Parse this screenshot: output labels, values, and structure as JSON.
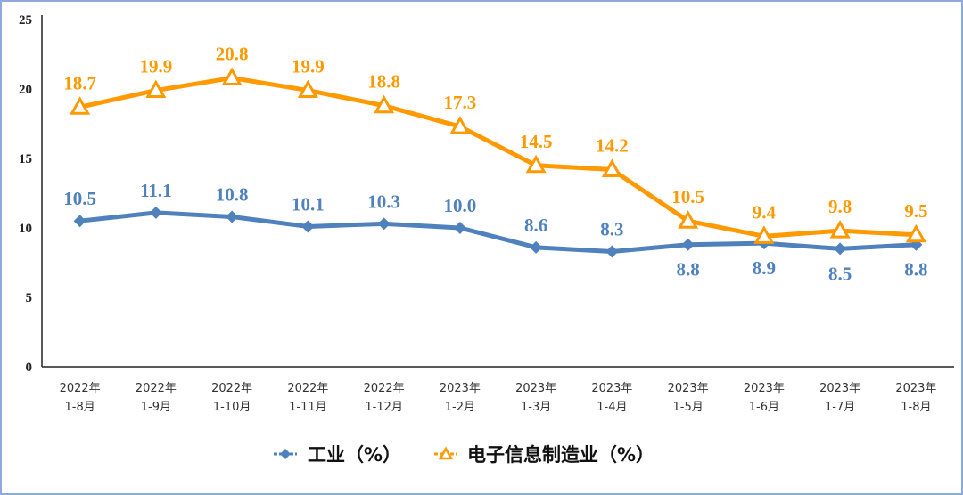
{
  "chart_data": {
    "type": "line",
    "categories": [
      [
        "2022年",
        "1-8月"
      ],
      [
        "2022年",
        "1-9月"
      ],
      [
        "2022年",
        "1-10月"
      ],
      [
        "2022年",
        "1-11月"
      ],
      [
        "2022年",
        "1-12月"
      ],
      [
        "2023年",
        "1-2月"
      ],
      [
        "2023年",
        "1-3月"
      ],
      [
        "2023年",
        "1-4月"
      ],
      [
        "2023年",
        "1-5月"
      ],
      [
        "2023年",
        "1-6月"
      ],
      [
        "2023年",
        "1-7月"
      ],
      [
        "2023年",
        "1-8月"
      ]
    ],
    "series": [
      {
        "name": "工业（%）",
        "color": "#4f81bd",
        "marker": "diamond",
        "values": [
          10.5,
          11.1,
          10.8,
          10.1,
          10.3,
          10.0,
          8.6,
          8.3,
          8.8,
          8.9,
          8.5,
          8.8
        ],
        "labels": [
          "10.5",
          "11.1",
          "10.8",
          "10.1",
          "10.3",
          "10.0",
          "8.6",
          "8.3",
          "8.8",
          "8.9",
          "8.5",
          "8.8"
        ]
      },
      {
        "name": "电子信息制造业（%）",
        "color": "#ff9900",
        "marker": "triangle",
        "values": [
          18.7,
          19.9,
          20.8,
          19.9,
          18.8,
          17.3,
          14.5,
          14.2,
          10.5,
          9.4,
          9.8,
          9.5
        ],
        "labels": [
          "18.7",
          "19.9",
          "20.8",
          "19.9",
          "18.8",
          "17.3",
          "14.5",
          "14.2",
          "10.5",
          "9.4",
          "9.8",
          "9.5"
        ]
      }
    ],
    "ylim": [
      0,
      25
    ],
    "yticks": [
      "0",
      "5",
      "10",
      "15",
      "20",
      "25"
    ],
    "grid": false,
    "legend": "bottom"
  }
}
